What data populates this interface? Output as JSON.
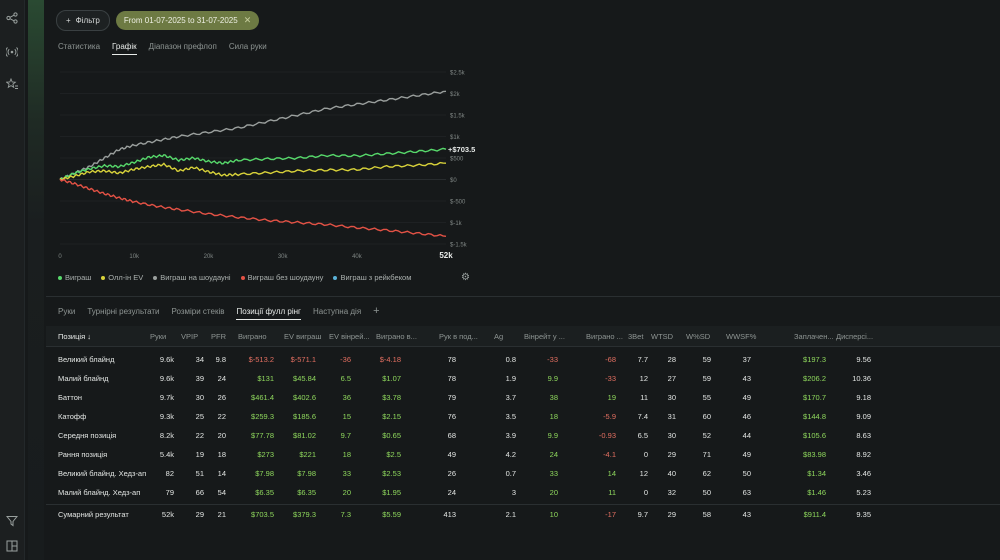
{
  "filter_label": "Фільтр",
  "date_chip": "From 01-07-2025 to 31-07-2025",
  "tabs": [
    "Статистика",
    "Графік",
    "Діапазон префлоп",
    "Сила руки"
  ],
  "tabs_active": 1,
  "legend": [
    {
      "label": "Виграш",
      "color": "#57d96b"
    },
    {
      "label": "Олл-ін EV",
      "color": "#d8d23a"
    },
    {
      "label": "Виграш на шоудауні",
      "color": "#9a9f9d"
    },
    {
      "label": "Виграш без шоудауну",
      "color": "#e35245"
    },
    {
      "label": "Виграш з рейкбеком",
      "color": "#5ab2d8"
    }
  ],
  "chart_data": {
    "type": "line",
    "x_ticks": [
      "0",
      "10k",
      "20k",
      "30k",
      "40k",
      "52k"
    ],
    "y_ticks": [
      "$2.5k",
      "$2k",
      "$1.5k",
      "$1k",
      "$500",
      "$0",
      "$-500",
      "$-1k",
      "$-1.5k"
    ],
    "ylim": [
      -1500,
      2500
    ],
    "xlim": [
      0,
      52000
    ],
    "end_label": "+$703.5",
    "series": [
      {
        "name": "Виграш на шоудауні",
        "color": "#9a9f9d",
        "x": [
          0,
          2000,
          4000,
          6000,
          8000,
          10000,
          13000,
          16000,
          20000,
          24000,
          28000,
          32000,
          36000,
          40000,
          44000,
          48000,
          52000
        ],
        "y": [
          0,
          150,
          300,
          500,
          700,
          800,
          900,
          1000,
          1100,
          1200,
          1350,
          1500,
          1650,
          1750,
          1850,
          1950,
          2050
        ]
      },
      {
        "name": "Виграш",
        "color": "#57d96b",
        "x": [
          0,
          2000,
          4000,
          6000,
          8000,
          10000,
          12000,
          14000,
          16000,
          18000,
          20000,
          22000,
          24000,
          28000,
          32000,
          36000,
          40000,
          44000,
          48000,
          52000
        ],
        "y": [
          0,
          150,
          250,
          320,
          300,
          400,
          520,
          560,
          450,
          500,
          420,
          380,
          450,
          480,
          500,
          560,
          550,
          600,
          650,
          703.5
        ]
      },
      {
        "name": "Олл-ін EV",
        "color": "#d8d23a",
        "x": [
          0,
          2000,
          4000,
          6000,
          8000,
          10000,
          12000,
          14000,
          16000,
          18000,
          20000,
          22000,
          24000,
          28000,
          32000,
          36000,
          40000,
          44000,
          48000,
          52000
        ],
        "y": [
          0,
          80,
          180,
          200,
          150,
          240,
          300,
          350,
          200,
          280,
          180,
          100,
          120,
          160,
          200,
          220,
          230,
          300,
          330,
          380
        ]
      },
      {
        "name": "Виграш без шоудауну",
        "color": "#e35245",
        "x": [
          0,
          2000,
          4000,
          6000,
          8000,
          10000,
          13000,
          16000,
          20000,
          24000,
          28000,
          32000,
          36000,
          40000,
          44000,
          48000,
          52000
        ],
        "y": [
          0,
          -100,
          -220,
          -330,
          -430,
          -520,
          -620,
          -700,
          -800,
          -880,
          -950,
          -1000,
          -1050,
          -1120,
          -1180,
          -1250,
          -1320
        ]
      }
    ]
  },
  "tabs2": [
    "Руки",
    "Турнірні результати",
    "Розміри стеків",
    "Позиції фулл рінг",
    "Наступна дія"
  ],
  "tabs2_active": 3,
  "table": {
    "headers": [
      "Позиція ↓",
      "Руки",
      "VPIP",
      "PFR",
      "Виграно",
      "EV виграш",
      "EV вінрей...",
      "Виграно в...",
      "Рук в под...",
      "Ag",
      "Вінрейт у ...",
      "Виграно ...",
      "3Bet",
      "WTSD",
      "W%SD",
      "WWSF%",
      "Заплачен...",
      "Дисперсі..."
    ],
    "rows": [
      [
        "Великий блайнд",
        "9.6k",
        "34",
        "9.8",
        "$-513.2",
        "$-571.1",
        "-36",
        "$-4.18",
        "78",
        "0.8",
        "-33",
        "-68",
        "7.7",
        "28",
        "59",
        "37",
        "$197.3",
        "9.56"
      ],
      [
        "Малий блайнд",
        "9.6k",
        "39",
        "24",
        "$131",
        "$45.84",
        "6.5",
        "$1.07",
        "78",
        "1.9",
        "9.9",
        "-33",
        "12",
        "27",
        "59",
        "43",
        "$206.2",
        "10.36"
      ],
      [
        "Баттон",
        "9.7k",
        "30",
        "26",
        "$461.4",
        "$402.6",
        "36",
        "$3.78",
        "79",
        "3.7",
        "38",
        "19",
        "11",
        "30",
        "55",
        "49",
        "$170.7",
        "9.18"
      ],
      [
        "Катофф",
        "9.3k",
        "25",
        "22",
        "$259.3",
        "$185.6",
        "15",
        "$2.15",
        "76",
        "3.5",
        "18",
        "-5.9",
        "7.4",
        "31",
        "60",
        "46",
        "$144.8",
        "9.09"
      ],
      [
        "Середня позиція",
        "8.2k",
        "22",
        "20",
        "$77.78",
        "$81.02",
        "9.7",
        "$0.65",
        "68",
        "3.9",
        "9.9",
        "-0.93",
        "6.5",
        "30",
        "52",
        "44",
        "$105.6",
        "8.63"
      ],
      [
        "Рання позиція",
        "5.4k",
        "19",
        "18",
        "$273",
        "$221",
        "18",
        "$2.5",
        "49",
        "4.2",
        "24",
        "-4.1",
        "0",
        "29",
        "71",
        "49",
        "$83.98",
        "8.92"
      ],
      [
        "Великий блайнд. Хедз-ап",
        "82",
        "51",
        "14",
        "$7.98",
        "$7.98",
        "33",
        "$2.53",
        "26",
        "0.7",
        "33",
        "14",
        "12",
        "40",
        "62",
        "50",
        "$1.34",
        "3.46"
      ],
      [
        "Малий блайнд. Хедз-ап",
        "79",
        "66",
        "54",
        "$6.35",
        "$6.35",
        "20",
        "$1.95",
        "24",
        "3",
        "20",
        "11",
        "0",
        "32",
        "50",
        "63",
        "$1.46",
        "5.23"
      ]
    ],
    "total": [
      "Сумарний результат",
      "52k",
      "29",
      "21",
      "$703.5",
      "$379.3",
      "7.3",
      "$5.59",
      "413",
      "2.1",
      "10",
      "-17",
      "9.7",
      "29",
      "58",
      "43",
      "$911.4",
      "9.35"
    ]
  }
}
